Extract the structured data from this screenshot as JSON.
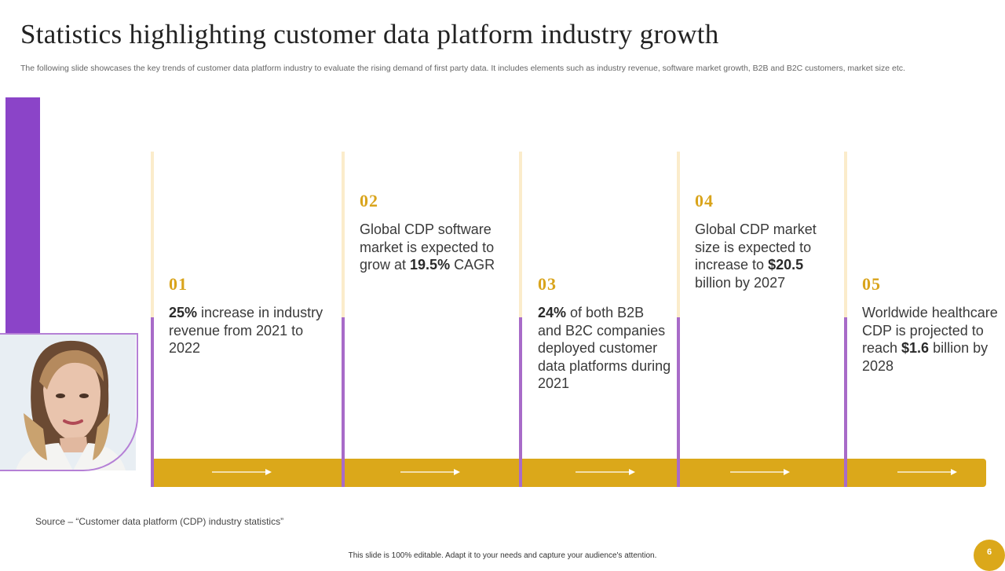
{
  "slide": {
    "title": "Statistics highlighting customer data platform industry growth",
    "subtitle": "The following slide showcases the key trends of customer data platform industry to evaluate the rising demand of first party data. It includes elements such as industry revenue, software market growth, B2B and B2C customers, market size etc.",
    "source": "Source – “Customer data platform (CDP) industry statistics”",
    "footer": "This slide is 100% editable. Adapt it to your needs and capture your audience's attention.",
    "page_number": "6"
  },
  "colors": {
    "accent_gold": "#dba81a",
    "accent_purple": "#8b44c8",
    "line_purple": "#a86bc8",
    "line_cream": "#fbeccb"
  },
  "stats": [
    {
      "number": "01",
      "highlight": "25%",
      "text": " increase in industry revenue from 2021 to 2022"
    },
    {
      "number": "02",
      "pre": "Global CDP software market is expected to grow at ",
      "highlight": "19.5%",
      "post": " CAGR"
    },
    {
      "number": "03",
      "highlight": "24%",
      "text": " of both B2B and B2C companies deployed customer data platforms during 2021"
    },
    {
      "number": "04",
      "pre": "Global CDP market size is expected to increase to ",
      "highlight": "$20.5",
      "post": " billion by 2027"
    },
    {
      "number": "05",
      "pre": "Worldwide healthcare CDP is projected to reach ",
      "highlight": "$1.6",
      "post": " billion by 2028"
    }
  ],
  "icons": {
    "arrow": "arrow-right-icon",
    "photo": "woman-portrait"
  }
}
